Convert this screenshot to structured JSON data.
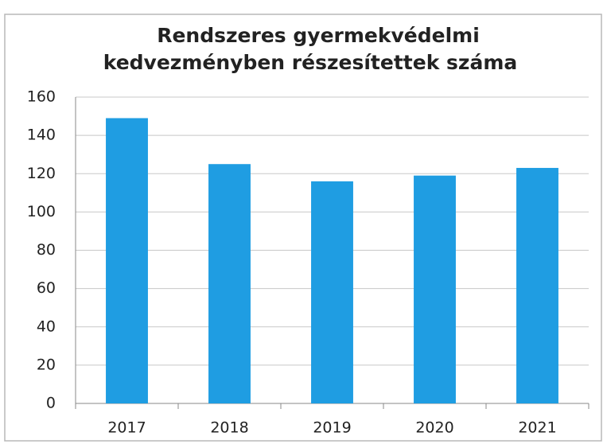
{
  "chart_data": {
    "type": "bar",
    "title": [
      "Rendszeres gyermekvédelmi",
      "kedvezményben részesítettek száma"
    ],
    "categories": [
      "2017",
      "2018",
      "2019",
      "2020",
      "2021"
    ],
    "values": [
      149,
      125,
      116,
      119,
      123
    ],
    "color": "#1f9de2",
    "ylim": [
      0,
      160
    ],
    "yticks": [
      0,
      20,
      40,
      60,
      80,
      100,
      120,
      140,
      160
    ],
    "grid": true
  }
}
